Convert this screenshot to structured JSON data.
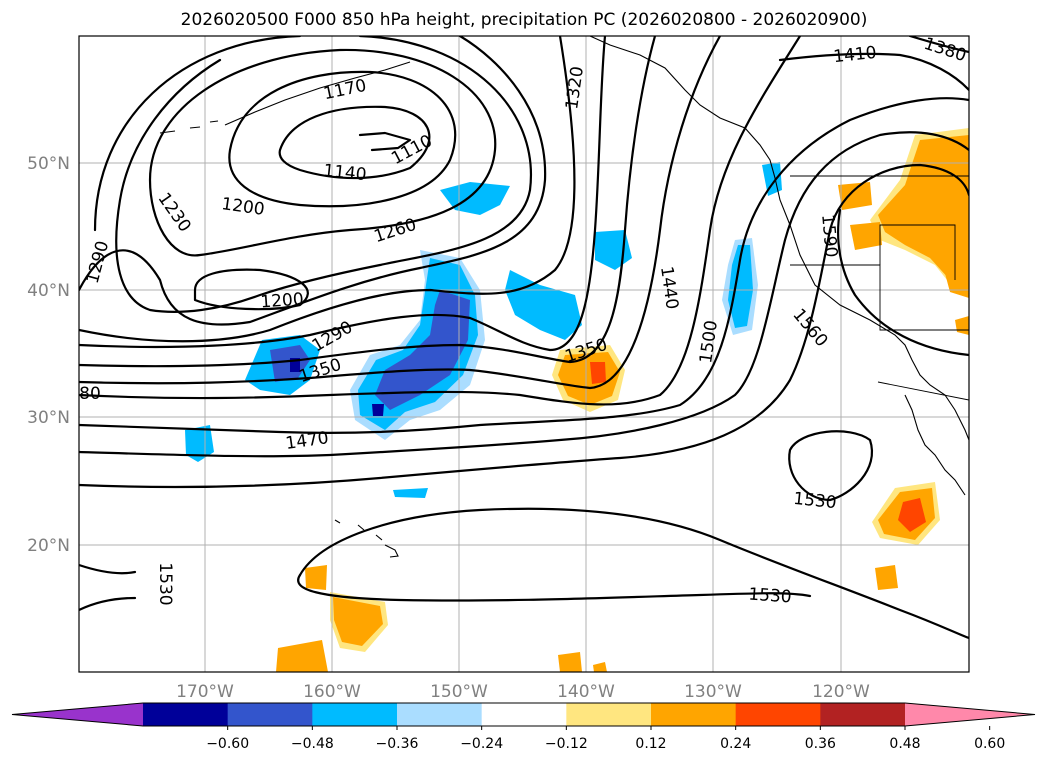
{
  "title": "2026020500 F000 850 hPa height, precipitation PC (2026020800 - 2026020900)",
  "longitude_labels": [
    "170°W",
    "160°W",
    "150°W",
    "140°W",
    "130°W",
    "120°W"
  ],
  "latitude_labels": [
    "50°N",
    "40°N",
    "30°N",
    "20°N"
  ],
  "colorbar": {
    "ticks": [
      "−0.60",
      "−0.48",
      "−0.36",
      "−0.24",
      "−0.12",
      "0.12",
      "0.24",
      "0.36",
      "0.48",
      "0.60"
    ],
    "colors": [
      "#9933cc",
      "#000099",
      "#3355cc",
      "#00bbff",
      "#aaddff",
      "#ffffff",
      "#ffe680",
      "#ffa500",
      "#ff4500",
      "#b22222",
      "#ff88aa"
    ]
  },
  "contour_labels": {
    "c1170": "1170",
    "c1110": "1110",
    "c1140": "1140",
    "c1200a": "1200",
    "c1230": "1230",
    "c1260": "1260",
    "c1290a": "1290",
    "c1320": "1320",
    "c1200b": "1200",
    "c1290b": "1290",
    "c1350a": "1350",
    "c1350b": "1350",
    "c80": "80",
    "c1470": "1470",
    "c1440": "1440",
    "c1500": "1500",
    "c1410": "1410",
    "c1380": "1380",
    "c1590": "1590",
    "c1560": "1560",
    "c1530a": "1530",
    "c1530b": "1530",
    "c1530c": "1530"
  }
}
